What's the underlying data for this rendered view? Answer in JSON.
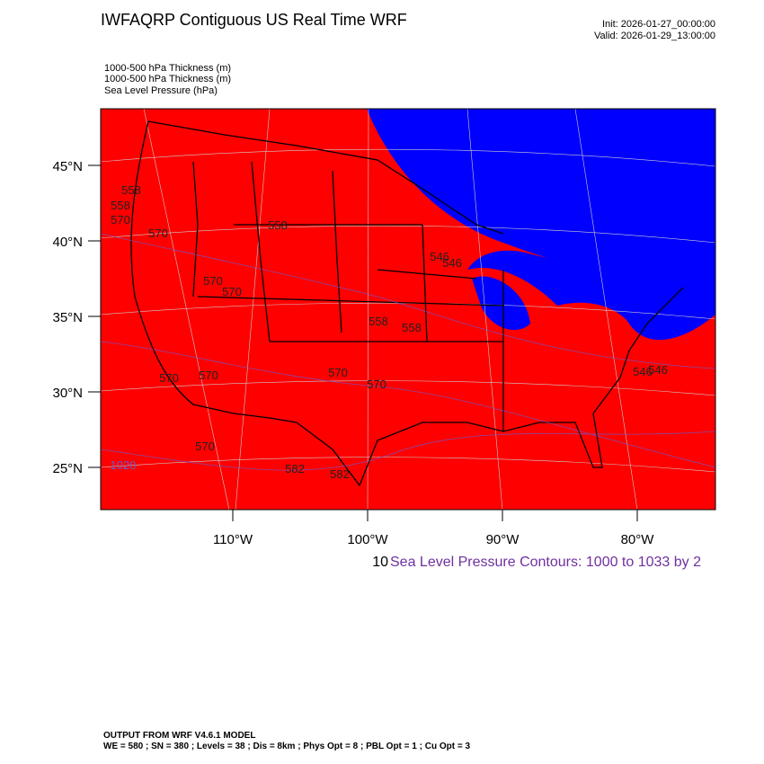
{
  "header": {
    "title": "IWFAQRP Contiguous US Real Time WRF",
    "init": "Init: 2026-01-27_00:00:00",
    "valid": "Valid: 2026-01-29_13:00:00"
  },
  "fields": [
    "1000-500 hPa Thickness   (m)",
    "1000-500 hPa Thickness   (m)",
    "Sea Level Pressure   (hPa)"
  ],
  "map": {
    "lat_labels": [
      "45°N",
      "40°N",
      "35°N",
      "30°N",
      "25°N"
    ],
    "lon_labels": [
      "110°W",
      "100°W",
      "90°W",
      "80°W"
    ],
    "contour_labels": [
      "558",
      "558",
      "570",
      "570",
      "558",
      "570",
      "570",
      "558",
      "558",
      "546",
      "546",
      "570",
      "570",
      "570",
      "570",
      "570",
      "582",
      "582",
      "546",
      "546",
      "1020"
    ]
  },
  "contour_note": {
    "prefix": "10",
    "text": "Sea Level Pressure Contours: 1000 to 1033 by 2"
  },
  "footer": {
    "line1": "OUTPUT FROM WRF V4.6.1 MODEL",
    "line2": "WE = 580 ; SN = 380 ; Levels = 38 ; Dis = 8km ; Phys Opt = 8 ; PBL Opt = 1 ; Cu Opt = 3"
  }
}
